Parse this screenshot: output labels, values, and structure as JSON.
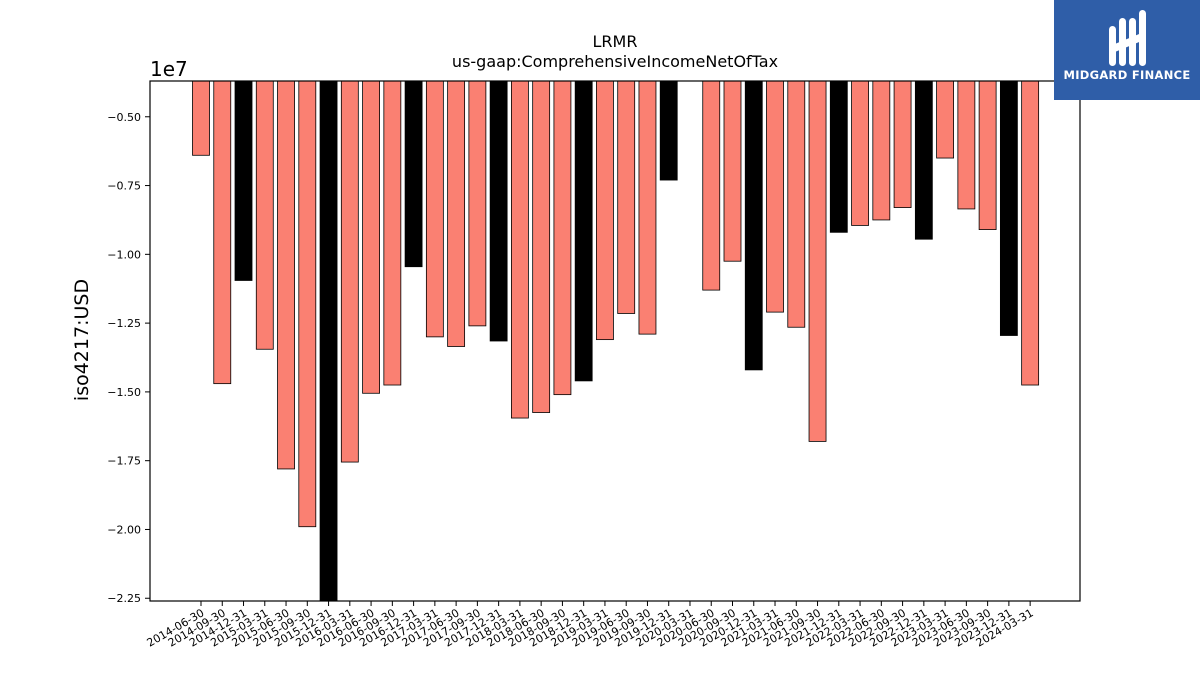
{
  "brand": {
    "name": "MIDGARD FINANCE",
    "color": "#2f5ea8"
  },
  "chart_data": {
    "type": "bar",
    "title": "LRMR",
    "subtitle": "us-gaap:ComprehensiveIncomeNetOfTax",
    "ylabel": "iso4217:USD",
    "xlabel": "",
    "y_offset_label": "1e7",
    "ylim": [
      -22600000,
      -3700000
    ],
    "yticks": [
      -5000000,
      -7500000,
      -10000000,
      -12500000,
      -15000000,
      -17500000,
      -20000000,
      -22500000
    ],
    "ytick_labels": [
      "−0.50",
      "−0.75",
      "−1.00",
      "−1.25",
      "−1.50",
      "−1.75",
      "−2.00",
      "−2.25"
    ],
    "grid": false,
    "colors": {
      "quarter": "#fa8072",
      "year_end": "#000000"
    },
    "categories": [
      "2014-06-30",
      "2014-09-30",
      "2014-12-31",
      "2015-03-31",
      "2015-06-30",
      "2015-09-30",
      "2015-12-31",
      "2016-03-31",
      "2016-06-30",
      "2016-09-30",
      "2016-12-31",
      "2017-03-31",
      "2017-06-30",
      "2017-09-30",
      "2017-12-31",
      "2018-03-31",
      "2018-06-30",
      "2018-09-30",
      "2018-12-31",
      "2019-03-31",
      "2019-06-30",
      "2019-09-30",
      "2019-12-31",
      "2020-03-31",
      "2020-06-30",
      "2020-09-30",
      "2020-12-31",
      "2021-03-31",
      "2021-06-30",
      "2021-09-30",
      "2021-12-31",
      "2022-03-31",
      "2022-06-30",
      "2022-09-30",
      "2022-12-31",
      "2023-03-31",
      "2023-06-30",
      "2023-09-30",
      "2023-12-31",
      "2024-03-31"
    ],
    "series": [
      {
        "values": [
          -6400000,
          -14700000,
          -10950000,
          -13450000,
          -17800000,
          -19900000,
          -22600000,
          -17550000,
          -15050000,
          -14750000,
          -10450000,
          -13000000,
          -13350000,
          -12600000,
          -13150000,
          -15950000,
          -15750000,
          -15100000,
          -14600000,
          -13100000,
          -12150000,
          -12900000,
          -7300000,
          null,
          -11300000,
          -10250000,
          -14200000,
          -12100000,
          -12650000,
          -16800000,
          -9200000,
          -8950000,
          -8750000,
          -8300000,
          -9450000,
          -6500000,
          -8350000,
          -9100000,
          -12950000,
          -14750000
        ],
        "bar_kind": [
          "q",
          "q",
          "y",
          "q",
          "q",
          "q",
          "y",
          "q",
          "q",
          "q",
          "y",
          "q",
          "q",
          "q",
          "y",
          "q",
          "q",
          "q",
          "y",
          "q",
          "q",
          "q",
          "y",
          "q",
          "q",
          "q",
          "y",
          "q",
          "q",
          "q",
          "y",
          "q",
          "q",
          "q",
          "y",
          "q",
          "q",
          "q",
          "y",
          "q"
        ]
      }
    ]
  }
}
